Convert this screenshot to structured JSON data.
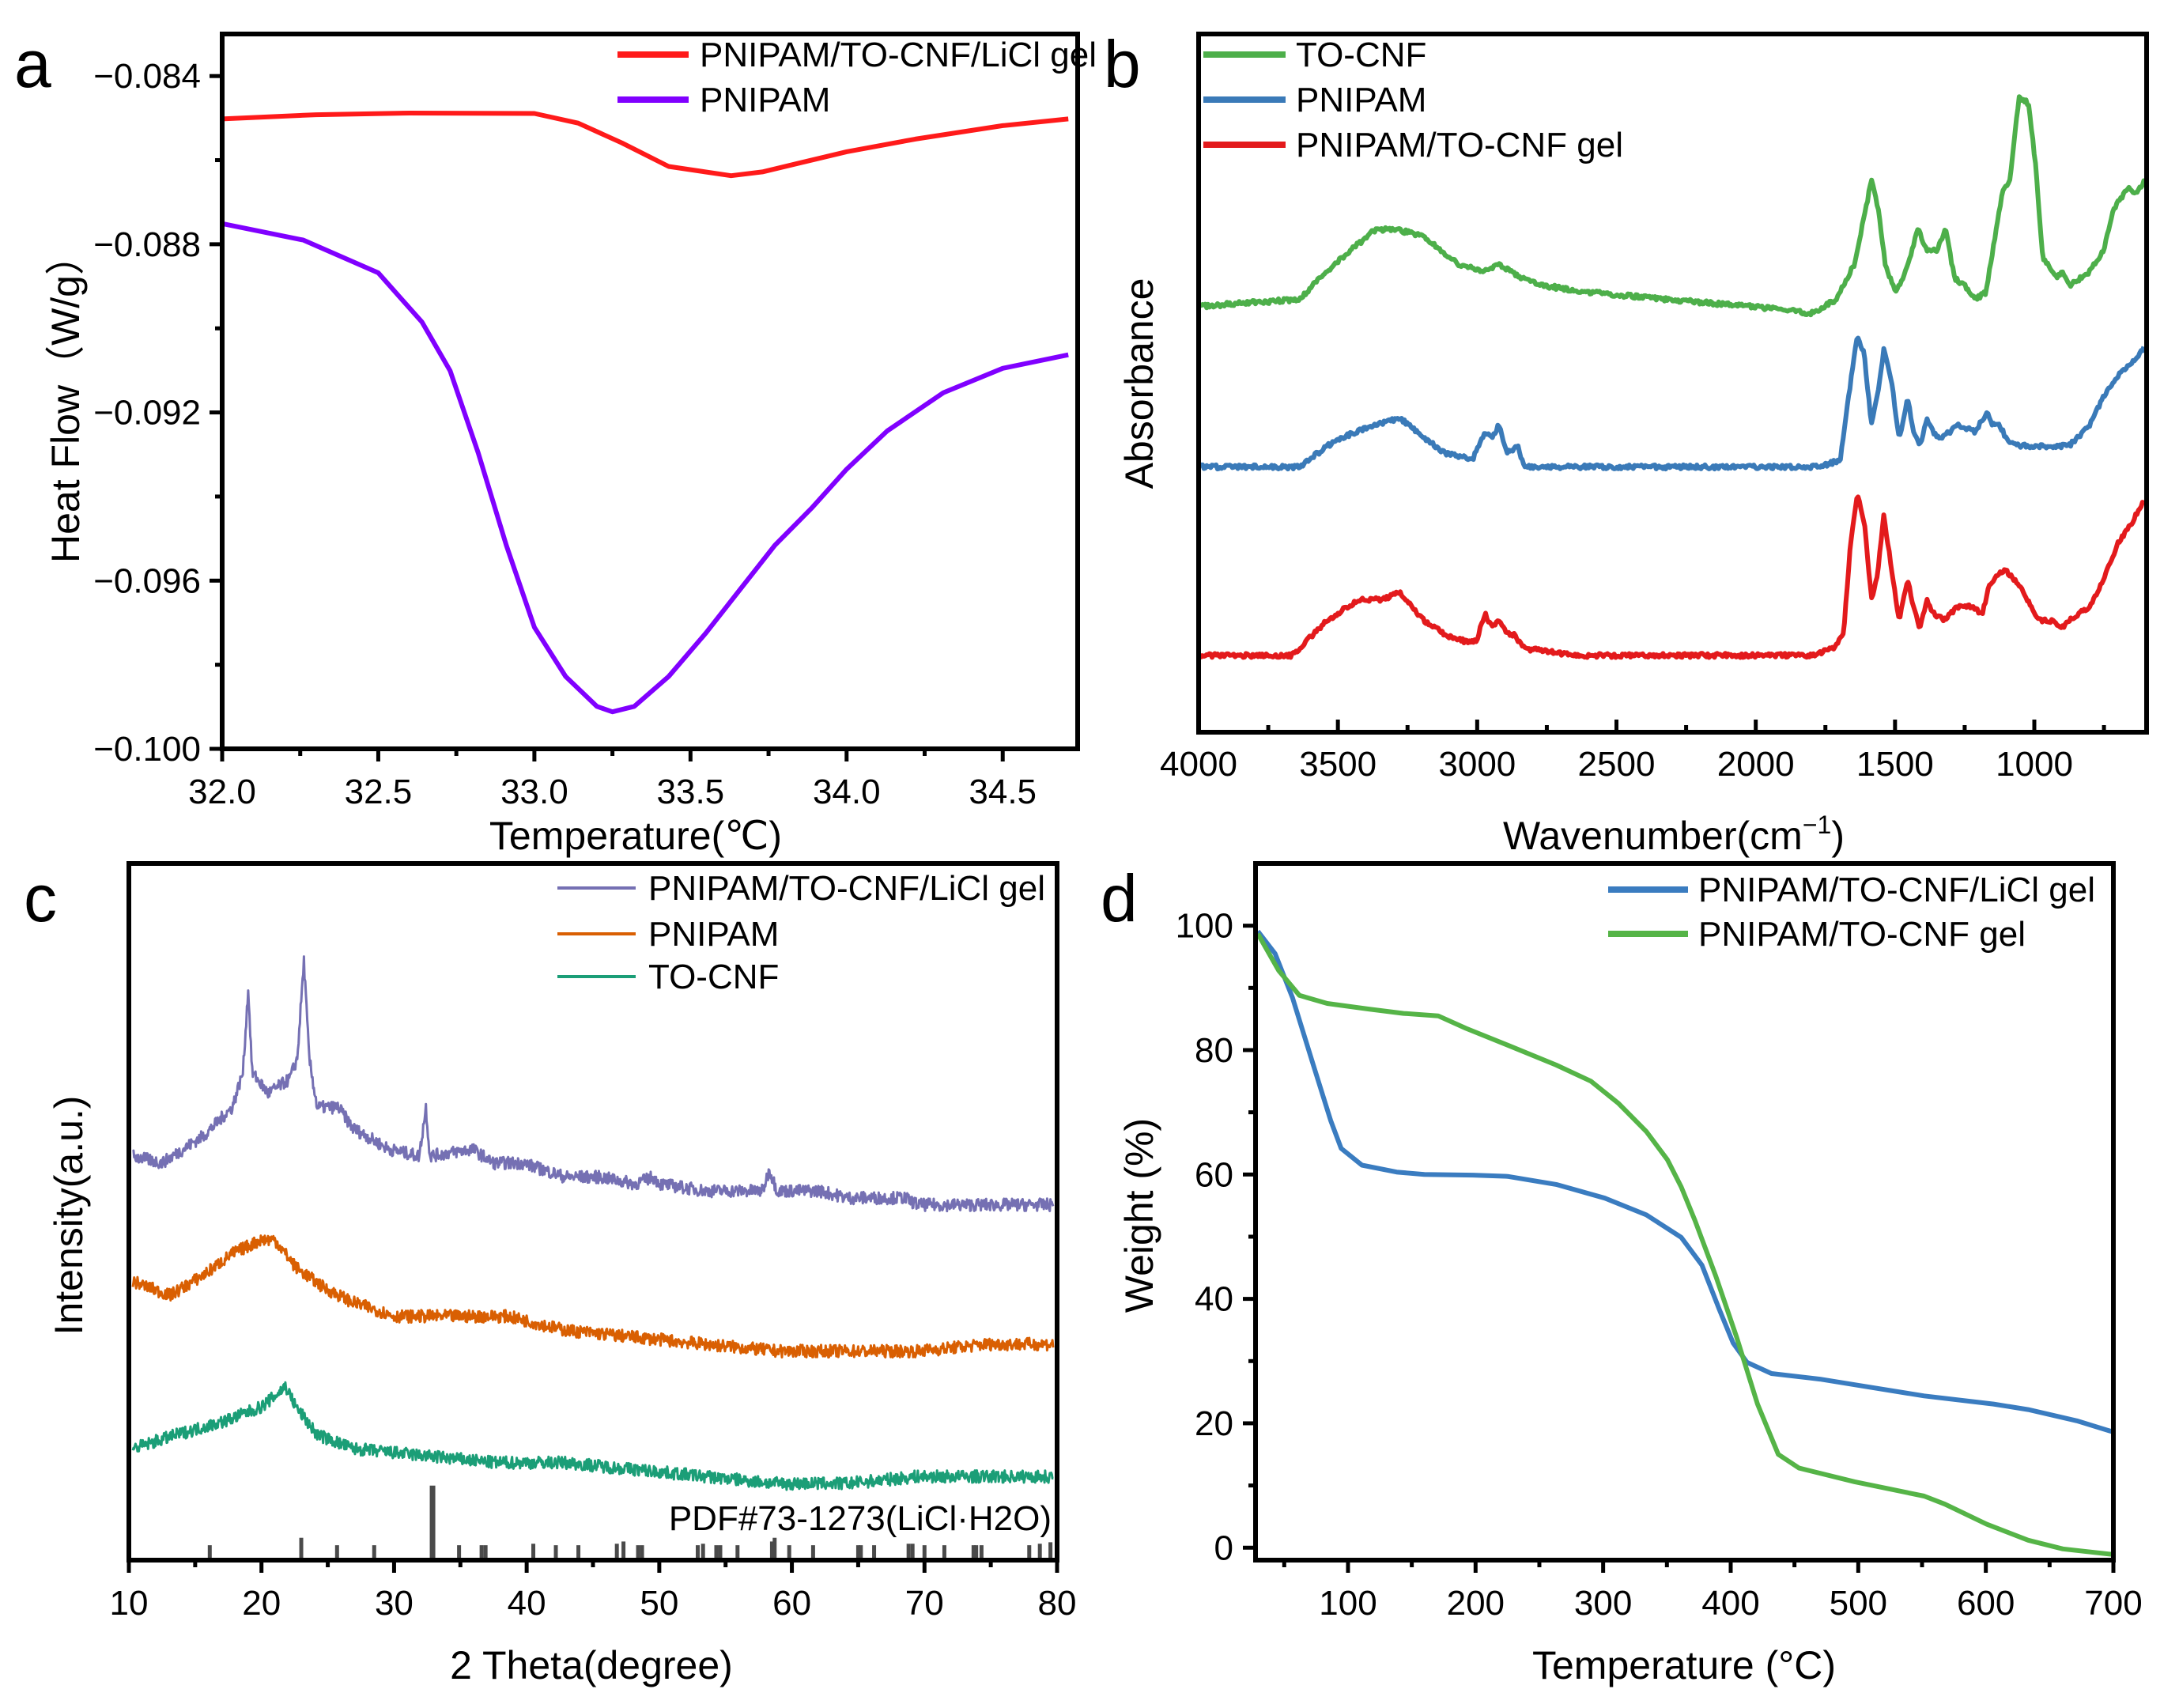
{
  "chart_data": [
    {
      "panel_label": "a",
      "type": "line",
      "xlabel": "Temperature(℃)",
      "ylabel": "Heat Flow（W/g）",
      "xlim": [
        32.0,
        34.74
      ],
      "ylim": [
        -0.1,
        -0.083
      ],
      "xticks": [
        32.0,
        32.5,
        33.0,
        33.5,
        34.0,
        34.5
      ],
      "xtick_labels": [
        "32.0",
        "32.5",
        "33.0",
        "33.5",
        "34.0",
        "34.5"
      ],
      "xminor": [
        32.25,
        32.75,
        33.25,
        33.75,
        34.25
      ],
      "yticks": [
        -0.084,
        -0.088,
        -0.092,
        -0.096,
        -0.1
      ],
      "ytick_labels": [
        "−0.084",
        "−0.088",
        "−0.092",
        "−0.096",
        "−0.100"
      ],
      "yminor": [
        -0.086,
        -0.09,
        -0.094,
        -0.098
      ],
      "legend_position": "top-right",
      "series": [
        {
          "name": "PNIPAM/TO-CNF/LiCl gel",
          "color": "#ff1a1a",
          "x": [
            32.0,
            32.3,
            32.6,
            33.0,
            33.14,
            33.28,
            33.43,
            33.63,
            33.73,
            34.0,
            34.22,
            34.5,
            34.71
          ],
          "y": [
            -0.08502,
            -0.08492,
            -0.08488,
            -0.08489,
            -0.08512,
            -0.08559,
            -0.08615,
            -0.08637,
            -0.08628,
            -0.0858,
            -0.0855,
            -0.08518,
            -0.08502
          ]
        },
        {
          "name": "PNIPAM",
          "color": "#8000ff",
          "x": [
            32.0,
            32.26,
            32.5,
            32.64,
            32.73,
            32.82,
            32.91,
            33.0,
            33.1,
            33.2,
            33.25,
            33.32,
            33.43,
            33.55,
            33.66,
            33.77,
            33.89,
            34.0,
            34.13,
            34.31,
            34.5,
            34.71
          ],
          "y": [
            -0.08751,
            -0.0879,
            -0.08868,
            -0.08985,
            -0.09101,
            -0.09296,
            -0.09516,
            -0.09711,
            -0.09828,
            -0.09899,
            -0.09912,
            -0.09899,
            -0.09828,
            -0.09724,
            -0.0962,
            -0.09516,
            -0.09426,
            -0.09335,
            -0.09244,
            -0.09153,
            -0.09095,
            -0.09063
          ]
        }
      ]
    },
    {
      "panel_label": "b",
      "type": "line",
      "xlabel": "Wavenumber(cm",
      "xlabel_sup": "−1",
      "xlabel_end": ")",
      "ylabel": "Absorbance",
      "xlim": [
        4000,
        597
      ],
      "ylim": [
        0,
        1
      ],
      "xticks": [
        4000,
        3500,
        3000,
        2500,
        2000,
        1500,
        1000
      ],
      "xtick_labels": [
        "4000",
        "3500",
        "3000",
        "2500",
        "2000",
        "1500",
        "1000"
      ],
      "xminor": [
        3750,
        3250,
        2750,
        2250,
        1750,
        1250,
        750
      ],
      "yticks": [],
      "ytick_labels": [],
      "yminor": [],
      "legend_position": "top-left",
      "series": [
        {
          "name": "TO-CNF",
          "color": "#4daf4a",
          "x": [
            4000,
            3639,
            3514,
            3365,
            3290,
            3191,
            3066,
            2979,
            2917,
            2842,
            2768,
            2593,
            2320,
            2021,
            1797,
            1710,
            1647,
            1610,
            1585,
            1560,
            1535,
            1498,
            1461,
            1418,
            1386,
            1349,
            1319,
            1286,
            1249,
            1212,
            1174,
            1149,
            1112,
            1087,
            1055,
            1020,
            995,
            970,
            920,
            900,
            871,
            801,
            751,
            714,
            664,
            639,
            602
          ],
          "y": [
            0.61,
            0.62,
            0.67,
            0.72,
            0.72,
            0.71,
            0.67,
            0.66,
            0.67,
            0.65,
            0.64,
            0.63,
            0.62,
            0.61,
            0.6,
            0.62,
            0.67,
            0.74,
            0.79,
            0.75,
            0.67,
            0.63,
            0.66,
            0.72,
            0.69,
            0.69,
            0.72,
            0.65,
            0.64,
            0.62,
            0.63,
            0.69,
            0.78,
            0.79,
            0.91,
            0.9,
            0.81,
            0.68,
            0.65,
            0.66,
            0.64,
            0.66,
            0.69,
            0.75,
            0.78,
            0.77,
            0.79
          ]
        },
        {
          "name": "PNIPAM",
          "color": "#3a7ab8",
          "x": [
            4000,
            3639,
            3502,
            3365,
            3278,
            3216,
            3116,
            3017,
            2972,
            2947,
            2922,
            2892,
            2855,
            2830,
            2643,
            1896,
            1772,
            1697,
            1660,
            1635,
            1610,
            1585,
            1560,
            1540,
            1508,
            1485,
            1455,
            1435,
            1411,
            1386,
            1361,
            1336,
            1274,
            1212,
            1169,
            1149,
            1124,
            1100,
            1050,
            950,
            913,
            876,
            801,
            751,
            701,
            651,
            607
          ],
          "y": [
            0.38,
            0.38,
            0.42,
            0.44,
            0.45,
            0.43,
            0.4,
            0.39,
            0.43,
            0.42,
            0.44,
            0.4,
            0.41,
            0.38,
            0.38,
            0.38,
            0.38,
            0.39,
            0.5,
            0.57,
            0.54,
            0.44,
            0.49,
            0.55,
            0.49,
            0.42,
            0.48,
            0.43,
            0.41,
            0.45,
            0.43,
            0.42,
            0.44,
            0.43,
            0.46,
            0.44,
            0.44,
            0.42,
            0.41,
            0.41,
            0.41,
            0.41,
            0.44,
            0.48,
            0.51,
            0.53,
            0.55
          ]
        },
        {
          "name": "PNIPAM/TO-CNF gel",
          "color": "#e31a1c",
          "x": [
            4000,
            3664,
            3539,
            3427,
            3340,
            3278,
            3191,
            3116,
            3041,
            3004,
            2972,
            2947,
            2922,
            2892,
            2867,
            2830,
            2643,
            2320,
            2021,
            1797,
            1722,
            1685,
            1660,
            1635,
            1610,
            1585,
            1565,
            1540,
            1508,
            1485,
            1455,
            1435,
            1411,
            1386,
            1361,
            1324,
            1274,
            1224,
            1187,
            1162,
            1124,
            1100,
            1050,
            988,
            938,
            900,
            876,
            801,
            751,
            701,
            651,
            607
          ],
          "y": [
            0.11,
            0.11,
            0.16,
            0.19,
            0.19,
            0.2,
            0.16,
            0.14,
            0.13,
            0.13,
            0.17,
            0.15,
            0.16,
            0.14,
            0.14,
            0.12,
            0.11,
            0.11,
            0.11,
            0.11,
            0.12,
            0.14,
            0.27,
            0.34,
            0.3,
            0.19,
            0.22,
            0.31,
            0.22,
            0.16,
            0.22,
            0.18,
            0.15,
            0.19,
            0.17,
            0.16,
            0.18,
            0.18,
            0.17,
            0.21,
            0.23,
            0.23,
            0.21,
            0.16,
            0.16,
            0.15,
            0.16,
            0.18,
            0.22,
            0.27,
            0.3,
            0.33
          ]
        }
      ]
    },
    {
      "panel_label": "c",
      "type": "line",
      "xlabel": "2 Theta(degree)",
      "ylabel": "Intensity(a.u.)",
      "xlim": [
        10,
        80
      ],
      "ylim": [
        0,
        1
      ],
      "xticks": [
        10,
        20,
        30,
        40,
        50,
        60,
        70,
        80
      ],
      "xtick_labels": [
        "10",
        "20",
        "30",
        "40",
        "50",
        "60",
        "70",
        "80"
      ],
      "xminor": [
        15,
        25,
        35,
        45,
        55,
        65,
        75
      ],
      "yticks": [],
      "ytick_labels": [],
      "yminor": [],
      "legend_position": "top-right",
      "series": [
        {
          "name": "PNIPAM/TO-CNF/LiCl gel",
          "color": "#7570b3",
          "x": [
            10.3,
            12.5,
            15.7,
            17.8,
            18.6,
            19.0,
            19.3,
            20.5,
            22.1,
            22.7,
            23.2,
            23.6,
            24.2,
            25.8,
            26.9,
            29.6,
            31.9,
            32.4,
            32.7,
            35.9,
            37.5,
            39.7,
            42.9,
            45.5,
            48.2,
            49.5,
            50.1,
            53.5,
            57.8,
            58.3,
            58.9,
            62.1,
            64.2,
            68.5,
            69.5,
            74.8,
            79.7
          ],
          "y": [
            0.58,
            0.57,
            0.61,
            0.65,
            0.7,
            0.82,
            0.7,
            0.67,
            0.69,
            0.72,
            0.86,
            0.72,
            0.65,
            0.65,
            0.62,
            0.59,
            0.58,
            0.65,
            0.58,
            0.59,
            0.57,
            0.57,
            0.55,
            0.55,
            0.54,
            0.55,
            0.54,
            0.53,
            0.53,
            0.56,
            0.53,
            0.53,
            0.52,
            0.52,
            0.51,
            0.51,
            0.51
          ]
        },
        {
          "name": "PNIPAM",
          "color": "#d95f02",
          "x": [
            10.3,
            13.1,
            15.7,
            17.8,
            20.0,
            21.0,
            22.6,
            24.8,
            26.9,
            30.1,
            34.4,
            38.6,
            42.9,
            48.2,
            53.5,
            58.9,
            64.2,
            69.5,
            74.8,
            79.7
          ],
          "y": [
            0.4,
            0.38,
            0.41,
            0.44,
            0.46,
            0.46,
            0.42,
            0.39,
            0.37,
            0.35,
            0.35,
            0.35,
            0.33,
            0.32,
            0.31,
            0.3,
            0.3,
            0.3,
            0.31,
            0.31
          ]
        },
        {
          "name": "TO-CNF",
          "color": "#1b9e77",
          "x": [
            10.3,
            13.6,
            17.3,
            20.0,
            21.3,
            21.8,
            22.6,
            24.2,
            26.9,
            32.2,
            37.5,
            42.9,
            48.2,
            53.5,
            58.9,
            64.2,
            69.5,
            74.8,
            79.7
          ],
          "y": [
            0.16,
            0.18,
            0.2,
            0.22,
            0.24,
            0.25,
            0.22,
            0.18,
            0.16,
            0.15,
            0.14,
            0.14,
            0.13,
            0.12,
            0.11,
            0.11,
            0.12,
            0.12,
            0.12
          ]
        }
      ],
      "reference": {
        "label": "PDF#73-1273(LiCl·H2O)",
        "color": "#4a4a4a",
        "two_theta": [
          16.1,
          23.0,
          25.7,
          28.5,
          32.9,
          34.9,
          36.6,
          36.9,
          40.5,
          42.2,
          43.9,
          46.8,
          47.3,
          48.4,
          48.7,
          52.9,
          53.3,
          54.3,
          54.6,
          55.9,
          58.5,
          58.7,
          59.8,
          61.6,
          65.0,
          65.2,
          66.2,
          68.8,
          69.1,
          70.0,
          71.5,
          73.7,
          73.9,
          74.3,
          77.9,
          78.7,
          79.5
        ],
        "relative_intensity": [
          20,
          30,
          20,
          20,
          100,
          20,
          20,
          20,
          22,
          20,
          20,
          22,
          25,
          20,
          20,
          20,
          22,
          20,
          20,
          20,
          25,
          30,
          20,
          20,
          20,
          20,
          20,
          22,
          22,
          20,
          20,
          20,
          20,
          20,
          20,
          22,
          24
        ]
      }
    },
    {
      "panel_label": "d",
      "type": "line",
      "xlabel": "Temperature (°C)",
      "ylabel": "Weight (%)",
      "xlim": [
        27.5,
        700
      ],
      "ylim": [
        -2,
        110
      ],
      "xticks": [
        100,
        200,
        300,
        400,
        500,
        600,
        700
      ],
      "xtick_labels": [
        "100",
        "200",
        "300",
        "400",
        "500",
        "600",
        "700"
      ],
      "xminor": [
        50,
        150,
        250,
        350,
        450,
        550,
        650
      ],
      "yticks": [
        0,
        20,
        40,
        60,
        80,
        100
      ],
      "ytick_labels": [
        "0",
        "20",
        "40",
        "60",
        "80",
        "100"
      ],
      "yminor": [
        10,
        30,
        50,
        70,
        90
      ],
      "legend_position": "top-right",
      "series": [
        {
          "name": "PNIPAM/TO-CNF/LiCl gel",
          "color": "#3a7cc0",
          "x": [
            29.3,
            42.9,
            56.5,
            72.8,
            86.4,
            94.6,
            110.9,
            138.1,
            159.8,
            197.9,
            225.1,
            263.2,
            301.3,
            333.9,
            361.2,
            377.5,
            391.1,
            401.9,
            412.8,
            431.9,
            469.9,
            497.2,
            551.6,
            606.0,
            633.2,
            671.3,
            700
          ],
          "y": [
            99.1,
            95.5,
            88.4,
            77.6,
            68.7,
            64.2,
            61.5,
            60.4,
            60.0,
            59.9,
            59.7,
            58.4,
            56.2,
            53.5,
            49.9,
            45.4,
            38.3,
            32.9,
            29.8,
            28.0,
            27.1,
            26.2,
            24.4,
            23.1,
            22.2,
            20.4,
            18.6
          ]
        },
        {
          "name": "PNIPAM/TO-CNF gel",
          "color": "#55b447",
          "x": [
            29.3,
            45.6,
            61.9,
            83.7,
            116.3,
            143.5,
            170.7,
            192.5,
            225.1,
            263.2,
            290.4,
            312.2,
            333.9,
            350.3,
            361.2,
            372.0,
            388.4,
            404.7,
            421.0,
            437.3,
            453.6,
            497.2,
            551.6,
            567.9,
            600.5,
            633.2,
            660.4,
            700
          ],
          "y": [
            98.7,
            92.8,
            88.8,
            87.5,
            86.6,
            85.9,
            85.5,
            83.5,
            80.8,
            77.6,
            75.0,
            71.4,
            66.9,
            62.4,
            58.0,
            52.6,
            43.6,
            33.8,
            23.1,
            15.0,
            12.8,
            10.6,
            8.3,
            7.0,
            3.8,
            1.2,
            -0.2,
            -1.1
          ]
        }
      ]
    }
  ]
}
